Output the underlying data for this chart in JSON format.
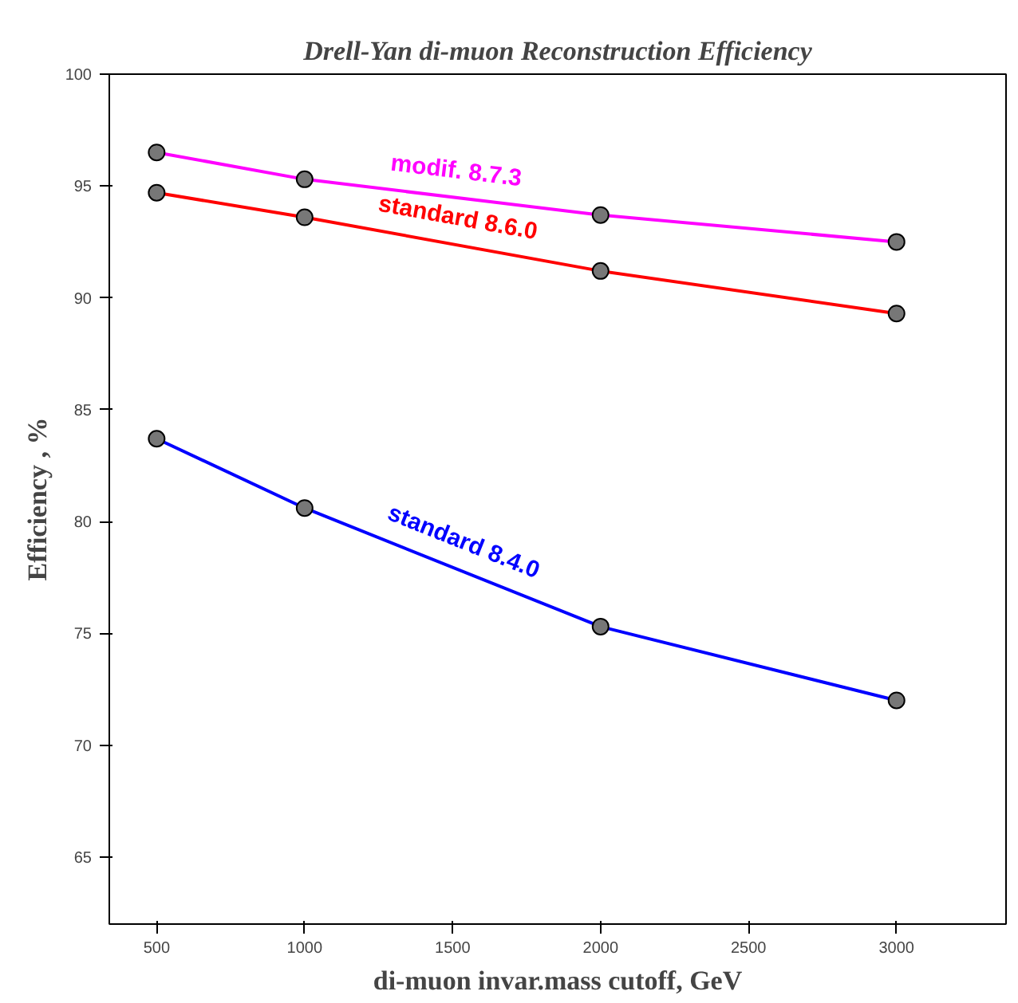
{
  "chart_data": {
    "type": "line",
    "title": "Drell-Yan di-muon Reconstruction Efficiency",
    "xlabel": "di-muon invar.mass cutoff, GeV",
    "ylabel": "Efficiency , %",
    "x": [
      500,
      1000,
      2000,
      3000
    ],
    "series": [
      {
        "name": "modif. 8.7.3",
        "color": "#ff00ff",
        "values": [
          96.5,
          95.3,
          93.7,
          92.5
        ]
      },
      {
        "name": "standard 8.6.0",
        "color": "#ff0000",
        "values": [
          94.7,
          93.6,
          91.2,
          89.3
        ]
      },
      {
        "name": "standard 8.4.0",
        "color": "#0000ff",
        "values": [
          83.7,
          80.6,
          75.3,
          72.0
        ]
      }
    ],
    "xlim": [
      340,
      3370
    ],
    "ylim": [
      62,
      100
    ],
    "xticks": [
      500,
      1000,
      1500,
      2000,
      2500,
      3000
    ],
    "yticks": [
      65,
      70,
      75,
      80,
      85,
      90,
      95,
      100
    ],
    "marker": "circle",
    "grid": false
  }
}
